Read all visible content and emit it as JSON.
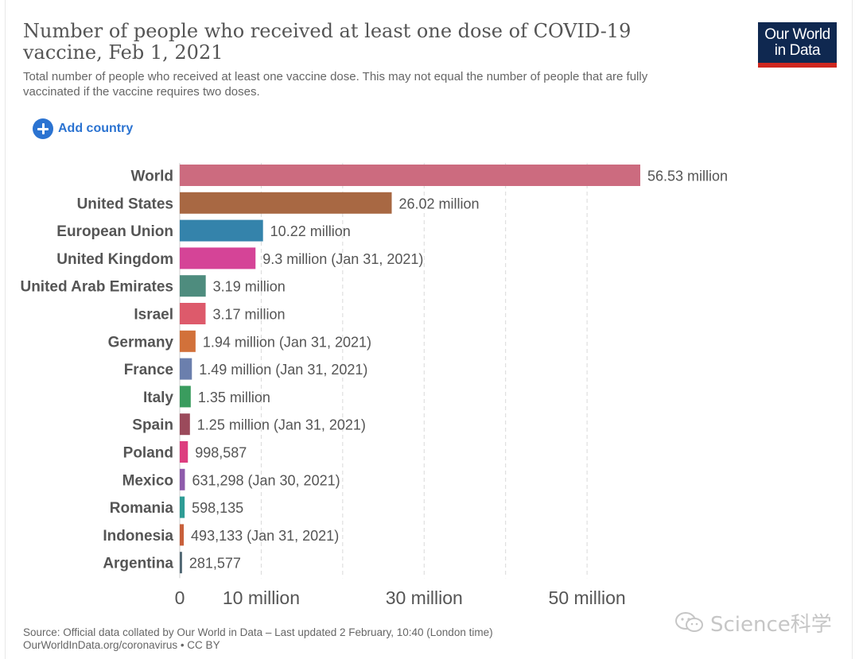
{
  "title": "Number of people who received at least one dose of COVID-19 vaccine, Feb 1, 2021",
  "subtitle": "Total number of people who received at least one vaccine dose. This may not equal the number of people that are fully vaccinated if the vaccine requires two doses.",
  "logo": {
    "line1": "Our World",
    "line2": "in Data",
    "bg_color": "#0f2850",
    "accent_color": "#ce261e"
  },
  "add_country": {
    "label": "Add country",
    "icon": "plus-circle-icon",
    "color": "#2b73d1"
  },
  "chart_data": {
    "type": "bar",
    "orientation": "horizontal",
    "categories": [
      "World",
      "United States",
      "European Union",
      "United Kingdom",
      "United Arab Emirates",
      "Israel",
      "Germany",
      "France",
      "Italy",
      "Spain",
      "Poland",
      "Mexico",
      "Romania",
      "Indonesia",
      "Argentina"
    ],
    "values": [
      56530000,
      26020000,
      10220000,
      9300000,
      3190000,
      3170000,
      1940000,
      1490000,
      1350000,
      1250000,
      998587,
      631298,
      598135,
      493133,
      281577
    ],
    "value_labels": [
      "56.53 million",
      "26.02 million",
      "10.22 million",
      "9.3 million (Jan 31, 2021)",
      "3.19 million",
      "3.17 million",
      "1.94 million (Jan 31, 2021)",
      "1.49 million (Jan 31, 2021)",
      "1.35 million",
      "1.25 million (Jan 31, 2021)",
      "998,587",
      "631,298 (Jan 30, 2021)",
      "598,135",
      "493,133 (Jan 31, 2021)",
      "281,577"
    ],
    "colors": [
      "#cc6b7f",
      "#a86843",
      "#3483ab",
      "#d54497",
      "#4e8c7e",
      "#dd5a6b",
      "#d2713a",
      "#6b7fad",
      "#3a9c5e",
      "#9b4a5b",
      "#dd3e7f",
      "#8e5bab",
      "#2e9c95",
      "#c8603b",
      "#4f6672"
    ],
    "xaxis": {
      "ticks": [
        0,
        10000000,
        20000000,
        30000000,
        40000000,
        50000000
      ],
      "tick_labels": [
        "0",
        "10 million",
        "",
        "30 million",
        "",
        "50 million"
      ],
      "xlim": [
        0,
        56530000
      ]
    },
    "grid": "vertical-dashed"
  },
  "source": {
    "line1": "Source: Official data collated by Our World in Data – Last updated 2 February, 10:40 (London time)",
    "line2": "OurWorldInData.org/coronavirus • CC BY"
  },
  "watermark": {
    "text": "Science科学",
    "icon": "wechat-icon"
  }
}
